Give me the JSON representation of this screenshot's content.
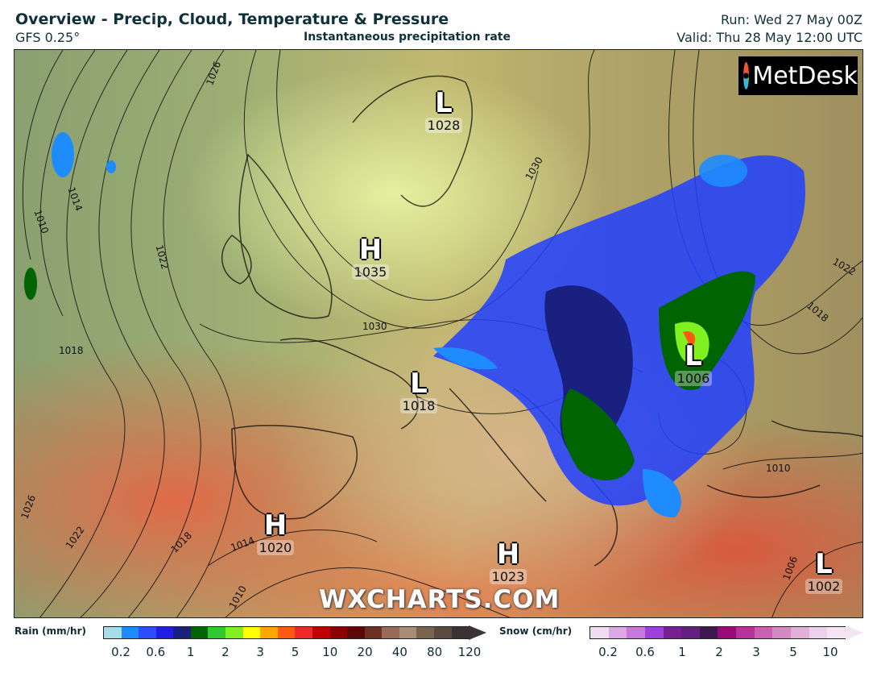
{
  "header": {
    "title": "Overview - Precip, Cloud, Temperature & Pressure",
    "model": "GFS 0.25°",
    "subtitle": "Instantaneous precipitation rate",
    "run": "Run: Wed 27 May 00Z",
    "valid": "Valid: Thu 28 May 12:00 UTC"
  },
  "logo": {
    "text": "MetDesk"
  },
  "watermark": "WXCHARTS.COM",
  "pressure_centers": [
    {
      "symbol": "L",
      "value": "1028"
    },
    {
      "symbol": "H",
      "value": "1035"
    },
    {
      "symbol": "L",
      "value": "1018"
    },
    {
      "symbol": "L",
      "value": "1006"
    },
    {
      "symbol": "H",
      "value": "1020"
    },
    {
      "symbol": "H",
      "value": "1023"
    },
    {
      "symbol": "L",
      "value": "1002"
    }
  ],
  "isobar_labels": [
    "1026",
    "1014",
    "1010",
    "1022",
    "1018",
    "1030",
    "1030",
    "1022",
    "1018",
    "1010",
    "1026",
    "1022",
    "1018",
    "1014",
    "1010",
    "1006"
  ],
  "legend": {
    "rain": {
      "label": "Rain (mm/hr)",
      "ticks": [
        "0.2",
        "0.6",
        "1",
        "2",
        "3",
        "5",
        "10",
        "20",
        "40",
        "80",
        "120"
      ],
      "colors": [
        "#a8dce8",
        "#1e8cff",
        "#2d4bff",
        "#1e1ee6",
        "#1a2080",
        "#006400",
        "#32c832",
        "#80f020",
        "#ffff00",
        "#ffa500",
        "#ff5a14",
        "#f02828",
        "#c00000",
        "#8b0000",
        "#5a0808",
        "#6e3020",
        "#9a6a58",
        "#a88c74",
        "#7a6450",
        "#5a4a40",
        "#3c3434"
      ]
    },
    "snow": {
      "label": "Snow (cm/hr)",
      "ticks": [
        "0.2",
        "0.6",
        "1",
        "2",
        "3",
        "5",
        "10"
      ],
      "colors": [
        "#f0dcf0",
        "#dca8e6",
        "#c878dc",
        "#a040d8",
        "#782090",
        "#642080",
        "#401850",
        "#9a0a78",
        "#b4349c",
        "#c860b4",
        "#d488c4",
        "#e0b0d8",
        "#ecd0ec",
        "#f4e4f4"
      ]
    }
  }
}
